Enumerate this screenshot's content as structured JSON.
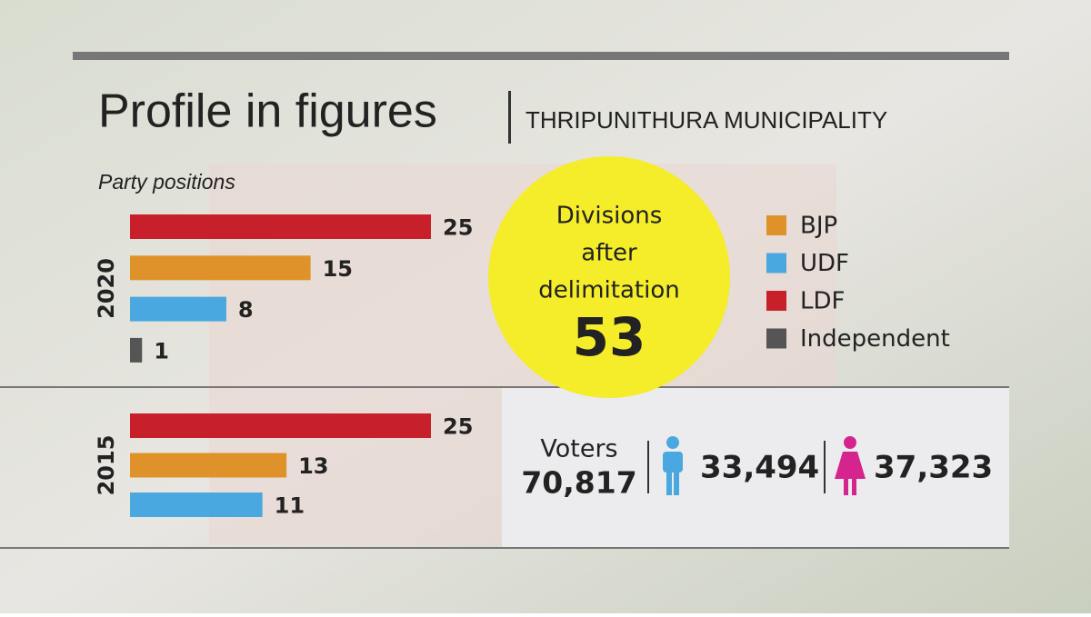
{
  "title": "Profile in figures",
  "subtitle": "THRIPUNITHURA MUNICIPALITY",
  "chart_data": {
    "type": "bar",
    "title": "Party positions",
    "categories": [
      "2020",
      "2015"
    ],
    "series": [
      {
        "name": "BJP",
        "color": "#e0922a",
        "values": [
          15,
          13
        ]
      },
      {
        "name": "UDF",
        "color": "#4aa8e0",
        "values": [
          8,
          11
        ]
      },
      {
        "name": "LDF",
        "color": "#c8202a",
        "values": [
          25,
          25
        ]
      },
      {
        "name": "Independent",
        "color": "#555555",
        "values": [
          1,
          null
        ]
      }
    ]
  },
  "divisions": {
    "lines": [
      "Divisions",
      "after",
      "delimitation"
    ],
    "value": "53"
  },
  "voters": {
    "label": "Voters",
    "total": "70,817",
    "male": "33,494",
    "female": "37,323"
  }
}
